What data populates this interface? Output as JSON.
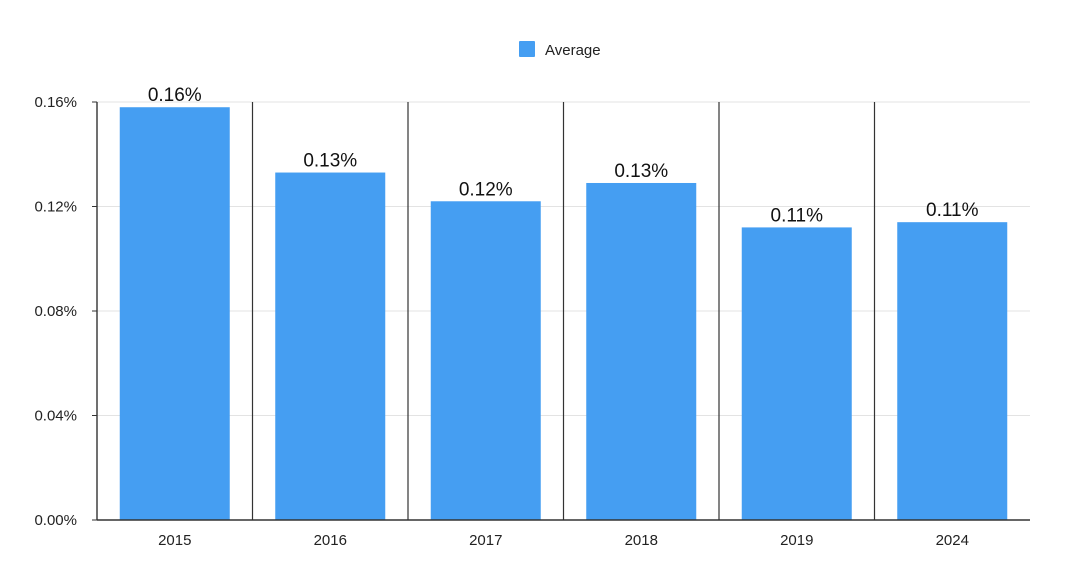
{
  "chart_data": {
    "type": "bar",
    "categories": [
      "2015",
      "2016",
      "2017",
      "2018",
      "2019",
      "2024"
    ],
    "series": [
      {
        "name": "Average",
        "values": [
          0.158,
          0.133,
          0.122,
          0.129,
          0.112,
          0.114
        ],
        "data_labels": [
          "0.16%",
          "0.13%",
          "0.12%",
          "0.13%",
          "0.11%",
          "0.11%"
        ],
        "color": "#459ef2"
      }
    ],
    "y_ticks": [
      0,
      0.04,
      0.08,
      0.12,
      0.16
    ],
    "y_tick_labels": [
      "0.00%",
      "0.04%",
      "0.08%",
      "0.12%",
      "0.16%"
    ],
    "ylim": [
      0,
      0.16
    ],
    "title": "",
    "xlabel": "",
    "ylabel": "",
    "legend_position": "top-center",
    "grid": true,
    "grid_color": "#e3e3e3",
    "axis_color": "#333333",
    "category_separators": true
  }
}
